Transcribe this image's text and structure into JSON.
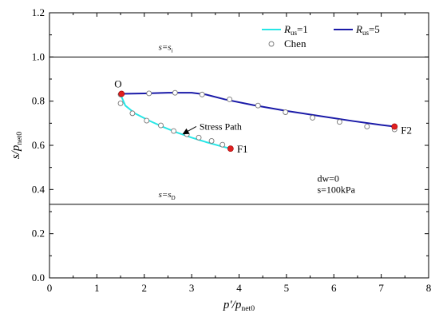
{
  "chart_data": {
    "type": "line",
    "xlabel": {
      "main": "p′/p",
      "sub": "net0"
    },
    "ylabel": {
      "main": "s/p",
      "sub": "net0"
    },
    "xlim": [
      0,
      8
    ],
    "ylim": [
      0,
      1.2
    ],
    "xticks": [
      0,
      1,
      2,
      3,
      4,
      5,
      6,
      7,
      8
    ],
    "yticks": [
      0.0,
      0.2,
      0.4,
      0.6,
      0.8,
      1.0,
      1.2
    ],
    "xtick_labels": [
      "0",
      "1",
      "2",
      "3",
      "4",
      "5",
      "6",
      "7",
      "8"
    ],
    "ytick_labels": [
      "0.0",
      "0.2",
      "0.4",
      "0.6",
      "0.8",
      "1.0",
      "1.2"
    ],
    "grid": false,
    "legend_position": "top-right",
    "legend": [
      {
        "key": "rus1",
        "prefix": "R",
        "sub": "us",
        "suffix": "=1",
        "color": "#27e6e6",
        "kind": "line"
      },
      {
        "key": "rus5",
        "prefix": "R",
        "sub": "us",
        "suffix": "=5",
        "color": "#1a1aa8",
        "kind": "line"
      },
      {
        "key": "chen",
        "label": "Chen",
        "kind": "marker"
      }
    ],
    "series": [
      {
        "key": "rus1",
        "color": "#27e6e6",
        "x": [
          1.5,
          1.6,
          1.8,
          2.1,
          2.4,
          2.7,
          3.0,
          3.3,
          3.6,
          3.82
        ],
        "y": [
          0.83,
          0.78,
          0.745,
          0.712,
          0.683,
          0.657,
          0.635,
          0.615,
          0.597,
          0.585
        ]
      },
      {
        "key": "rus5",
        "color": "#1a1aa8",
        "x": [
          1.5,
          2.0,
          2.5,
          3.0,
          3.3,
          3.7,
          4.3,
          5.0,
          5.7,
          6.4,
          7.0,
          7.28
        ],
        "y": [
          0.833,
          0.835,
          0.838,
          0.838,
          0.83,
          0.808,
          0.782,
          0.756,
          0.733,
          0.71,
          0.692,
          0.685
        ]
      },
      {
        "key": "chen",
        "marker": "open-circle",
        "x": [
          1.5,
          1.5,
          1.75,
          2.05,
          2.35,
          2.62,
          2.9,
          3.15,
          3.42,
          3.65,
          2.1,
          2.65,
          3.22,
          3.8,
          4.4,
          4.98,
          5.55,
          6.12,
          6.7,
          7.28
        ],
        "y": [
          0.83,
          0.79,
          0.745,
          0.712,
          0.69,
          0.665,
          0.65,
          0.635,
          0.62,
          0.603,
          0.835,
          0.838,
          0.83,
          0.808,
          0.78,
          0.75,
          0.725,
          0.706,
          0.685,
          0.672
        ]
      }
    ],
    "endpoints": [
      {
        "label": "O",
        "x": 1.52,
        "y": 0.833,
        "color": "#e02020"
      },
      {
        "label": "F1",
        "x": 3.82,
        "y": 0.585,
        "color": "#e02020"
      },
      {
        "label": "F2",
        "x": 7.28,
        "y": 0.685,
        "color": "#e02020"
      }
    ],
    "hlines": [
      {
        "y": 1.0,
        "label_main": "s=s",
        "label_sub": "i",
        "label_x": 2.3
      },
      {
        "y": 0.333,
        "label_main": "s=s",
        "label_sub": "D",
        "label_x": 2.3
      }
    ],
    "annotations": {
      "stress_path": {
        "text": "Stress Path",
        "x": 3.4,
        "y": 0.685,
        "arrow_to_x": 2.82,
        "arrow_to_y": 0.652
      },
      "dw": {
        "text": "dw=0",
        "x": 5.65,
        "y": 0.435
      },
      "s": {
        "text": "s=100kPa",
        "x": 5.65,
        "y": 0.385
      }
    }
  }
}
